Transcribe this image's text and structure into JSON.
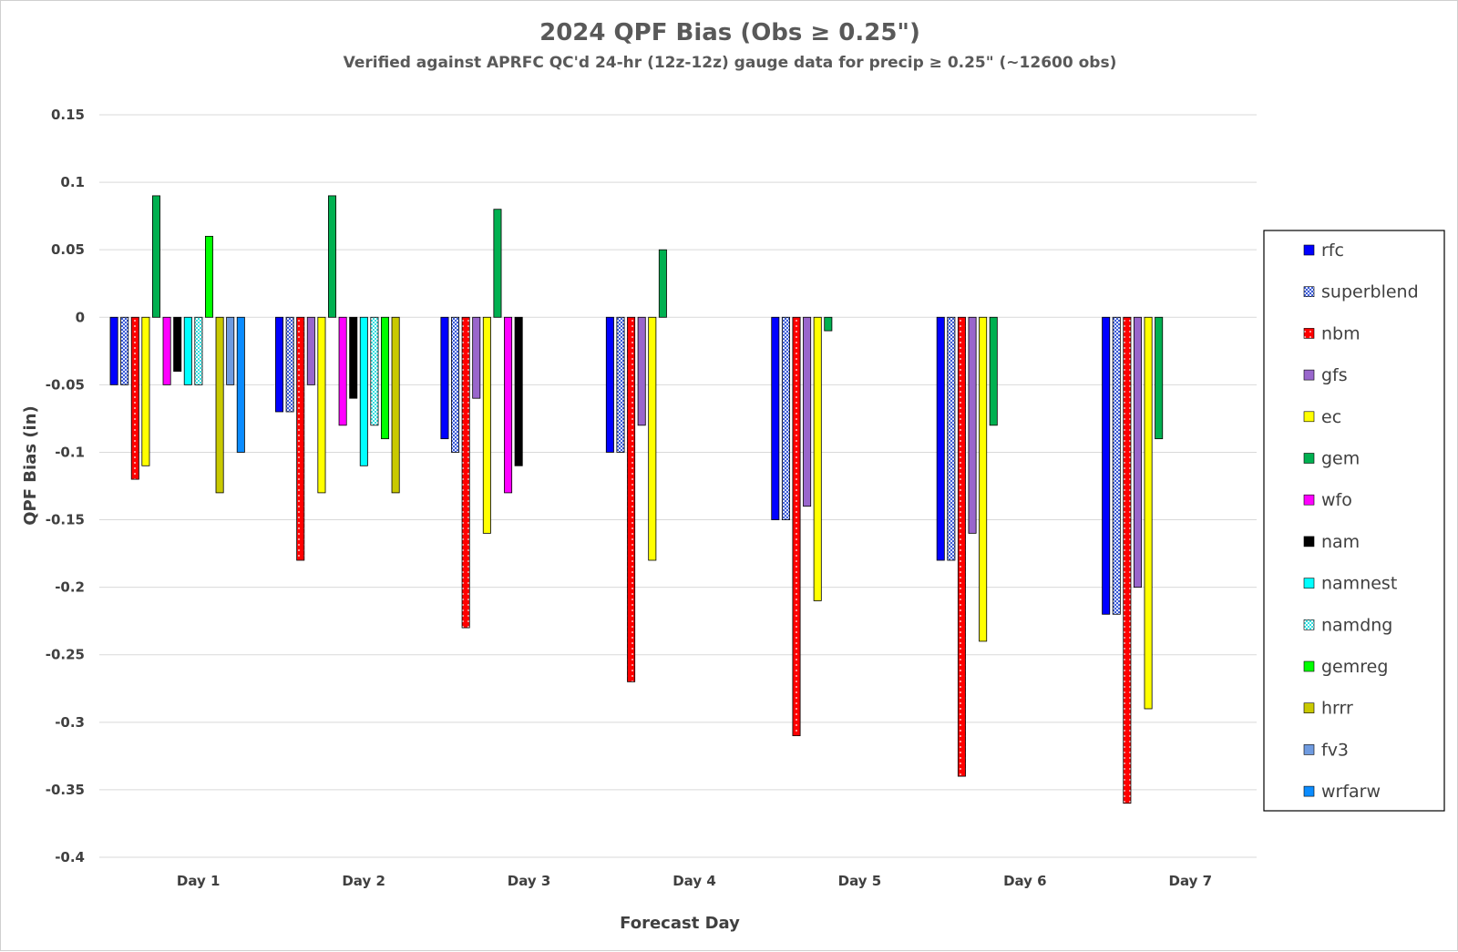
{
  "chart_data": {
    "type": "bar",
    "title": "2024 QPF Bias (Obs ≥ 0.25\")",
    "subtitle": "Verified against APRFC QC'd 24-hr (12z-12z) gauge data for precip ≥ 0.25\" (~12600 obs)",
    "xlabel": "Forecast Day",
    "ylabel": "QPF Bias (in)",
    "ylim": [
      -0.4,
      0.15
    ],
    "yticks": [
      "0.15",
      "0.1",
      "0.05",
      "0",
      "-0.05",
      "-0.1",
      "-0.15",
      "-0.2",
      "-0.25",
      "-0.3",
      "-0.35",
      "-0.4"
    ],
    "grid": true,
    "legend_position": "right",
    "categories": [
      "Day 1",
      "Day 2",
      "Day 3",
      "Day 4",
      "Day 5",
      "Day 6",
      "Day 7"
    ],
    "series": [
      {
        "name": "rfc",
        "color": "#0000ff",
        "pattern": "solid",
        "values": [
          -0.05,
          -0.07,
          -0.09,
          -0.1,
          -0.15,
          -0.18,
          -0.22
        ]
      },
      {
        "name": "superblend",
        "color": "#3b5bd6",
        "pattern": "check",
        "values": [
          -0.05,
          -0.07,
          -0.1,
          -0.1,
          -0.15,
          -0.18,
          -0.22
        ]
      },
      {
        "name": "nbm",
        "color": "#ff0000",
        "pattern": "dots",
        "values": [
          -0.12,
          -0.18,
          -0.23,
          -0.27,
          -0.31,
          -0.34,
          -0.36
        ]
      },
      {
        "name": "gfs",
        "color": "#9966cc",
        "pattern": "solid",
        "values": [
          null,
          -0.05,
          -0.06,
          -0.08,
          -0.14,
          -0.16,
          -0.2
        ]
      },
      {
        "name": "ec",
        "color": "#ffff00",
        "pattern": "solid",
        "values": [
          -0.11,
          -0.13,
          -0.16,
          -0.18,
          -0.21,
          -0.24,
          -0.29
        ]
      },
      {
        "name": "gem",
        "color": "#00b050",
        "pattern": "solid",
        "values": [
          0.09,
          0.09,
          0.08,
          0.05,
          -0.01,
          -0.08,
          -0.09
        ]
      },
      {
        "name": "wfo",
        "color": "#ff00ff",
        "pattern": "solid",
        "values": [
          -0.05,
          -0.08,
          -0.13,
          null,
          null,
          null,
          null
        ]
      },
      {
        "name": "nam",
        "color": "#000000",
        "pattern": "solid",
        "values": [
          -0.04,
          -0.06,
          -0.11,
          null,
          null,
          null,
          null
        ]
      },
      {
        "name": "namnest",
        "color": "#00ffff",
        "pattern": "solid",
        "values": [
          -0.05,
          -0.11,
          null,
          null,
          null,
          null,
          null
        ]
      },
      {
        "name": "namdng",
        "color": "#33e0e0",
        "pattern": "check",
        "values": [
          -0.05,
          -0.08,
          null,
          null,
          null,
          null,
          null
        ]
      },
      {
        "name": "gemreg",
        "color": "#00ff00",
        "pattern": "solid",
        "values": [
          0.06,
          -0.09,
          null,
          null,
          null,
          null,
          null
        ]
      },
      {
        "name": "hrrr",
        "color": "#c9c900",
        "pattern": "solid",
        "values": [
          -0.13,
          -0.13,
          null,
          null,
          null,
          null,
          null
        ]
      },
      {
        "name": "fv3",
        "color": "#6f9be0",
        "pattern": "solid",
        "values": [
          -0.05,
          null,
          null,
          null,
          null,
          null,
          null
        ]
      },
      {
        "name": "wrfarw",
        "color": "#0b8cff",
        "pattern": "solid",
        "values": [
          -0.1,
          null,
          null,
          null,
          null,
          null,
          null
        ]
      }
    ]
  }
}
